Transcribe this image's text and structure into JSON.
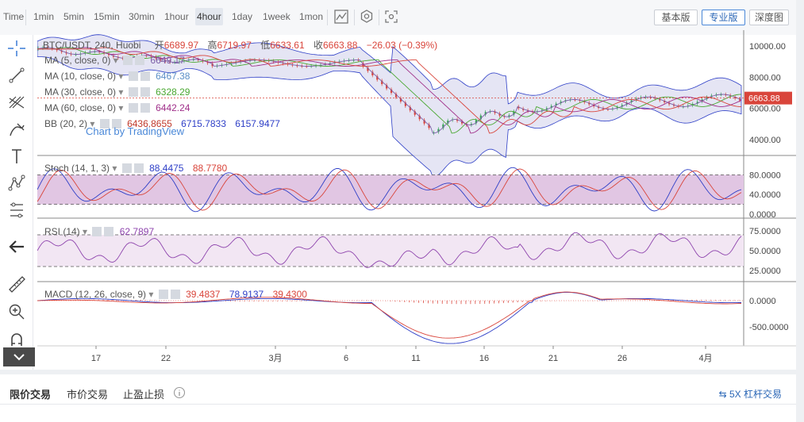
{
  "toolbar": {
    "intervals": [
      "Time",
      "1min",
      "5min",
      "15min",
      "30min",
      "1hour",
      "4hour",
      "1day",
      "1week",
      "1mon"
    ],
    "active_interval": "4hour",
    "view_buttons": [
      "基本版",
      "专业版",
      "深度图"
    ],
    "active_view": "专业版"
  },
  "main_legend": {
    "symbol": "BTC/USDT, 240, Huobi",
    "open_label": "开",
    "open": "6689.97",
    "high_label": "高",
    "high": "6719.97",
    "low_label": "低",
    "low": "6633.61",
    "close_label": "收",
    "close": "6663.88",
    "change": "−26.03 (−0.39%)",
    "watermark": "Chart by TradingView"
  },
  "indicators": [
    {
      "name": "MA (5, close, 0)",
      "values": [
        "6649.17"
      ],
      "colors": [
        "#7b5ea7"
      ]
    },
    {
      "name": "MA (10, close, 0)",
      "values": [
        "6467.38"
      ],
      "colors": [
        "#5b8fc7"
      ]
    },
    {
      "name": "MA (30, close, 0)",
      "values": [
        "6328.29"
      ],
      "colors": [
        "#4aa832"
      ]
    },
    {
      "name": "MA (60, close, 0)",
      "values": [
        "6442.24"
      ],
      "colors": [
        "#a0308a"
      ]
    },
    {
      "name": "BB (20, 2)",
      "values": [
        "6436.8655",
        "6715.7833",
        "6157.9477"
      ],
      "colors": [
        "#c0392b",
        "#2e3fc7",
        "#2e3fc7"
      ]
    }
  ],
  "stoch": {
    "name": "Stoch (14, 1, 3)",
    "values": [
      "88.4475",
      "88.7780"
    ]
  },
  "rsi": {
    "name": "RSI (14)",
    "value": "62.7897"
  },
  "macd": {
    "name": "MACD (12, 26, close, 9)",
    "values": [
      "39.4837",
      "78.9137",
      "39.4300"
    ]
  },
  "price_axis": [
    "10000.00",
    "8000.00",
    "6000.00",
    "4000.00"
  ],
  "last_price": "6663.88",
  "stoch_axis": [
    "80.0000",
    "40.0000",
    "0.0000"
  ],
  "rsi_axis": [
    "75.0000",
    "50.0000",
    "25.0000"
  ],
  "macd_axis": [
    "0.0000",
    "-500.0000"
  ],
  "time_axis": [
    "17",
    "22",
    "3月",
    "6",
    "11",
    "16",
    "21",
    "26",
    "4月"
  ],
  "colors": {
    "up": "#3aa35a",
    "down": "#d9453b",
    "bb_fill": "#dcdcf0",
    "stoch_fill": "#e1c6e3",
    "rsi_fill": "#f2e6f3"
  },
  "bottom": {
    "tabs": [
      "限价交易",
      "市价交易",
      "止盈止损"
    ],
    "active_tab": "限价交易",
    "lever": "5X 杠杆交易"
  }
}
